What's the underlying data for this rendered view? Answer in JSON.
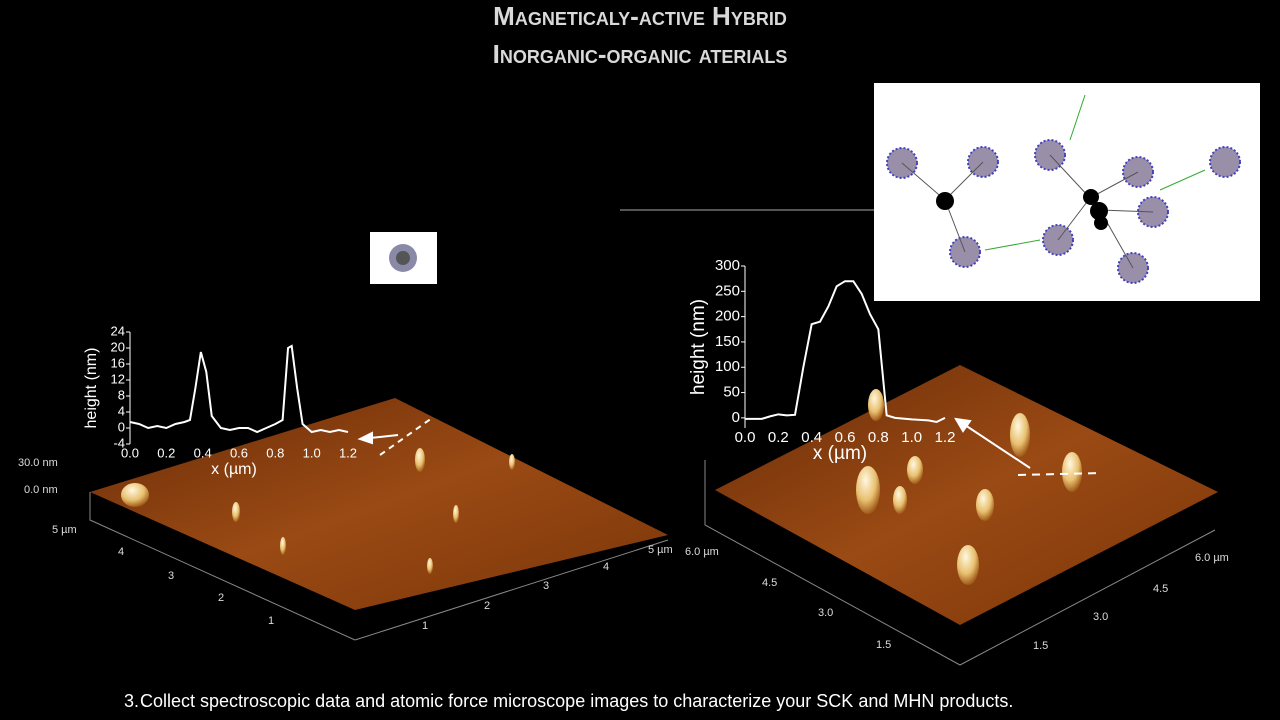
{
  "title": {
    "line1": "Magneticaly-active Hybrid",
    "line2": "Inorganic-organic aterials"
  },
  "profiles": [
    {
      "y_label": "height (nm)",
      "x_label": "x (µm)",
      "xlim": [
        0,
        1.2
      ],
      "ylim": [
        -4,
        24
      ],
      "xticks": [
        {
          "value": 0,
          "label": "0.0"
        },
        {
          "value": 0.2,
          "label": "0.2"
        },
        {
          "value": 0.4,
          "label": "0.4"
        },
        {
          "value": 0.6,
          "label": "0.6"
        },
        {
          "value": 0.8,
          "label": "0.8"
        },
        {
          "value": 1,
          "label": "1.0"
        },
        {
          "value": 1.2,
          "label": "1.2"
        }
      ],
      "yticks": [
        -4,
        0,
        4,
        8,
        12,
        16,
        20,
        24
      ],
      "x": [
        0,
        0.05,
        0.1,
        0.15,
        0.2,
        0.25,
        0.3,
        0.33,
        0.36,
        0.39,
        0.42,
        0.45,
        0.5,
        0.55,
        0.6,
        0.65,
        0.7,
        0.75,
        0.8,
        0.84,
        0.87,
        0.89,
        0.92,
        0.95,
        1,
        1.05,
        1.1,
        1.15,
        1.2
      ],
      "values": [
        1.5,
        1,
        0,
        0.5,
        0,
        1,
        1.5,
        2,
        10,
        19,
        14,
        3,
        0,
        -0.5,
        0,
        0,
        -1,
        0,
        1,
        2,
        20,
        20.5,
        10,
        1,
        -1,
        -0.5,
        -1,
        -0.5,
        -1
      ]
    },
    {
      "y_label": "height (nm)",
      "x_label": "x (µm)",
      "xlim": [
        0,
        1.2
      ],
      "ylim": [
        -20,
        300
      ],
      "xticks": [
        {
          "value": 0,
          "label": "0.0"
        },
        {
          "value": 0.2,
          "label": "0.2"
        },
        {
          "value": 0.4,
          "label": "0.4"
        },
        {
          "value": 0.6,
          "label": "0.6"
        },
        {
          "value": 0.8,
          "label": "0.8"
        },
        {
          "value": 1,
          "label": "1.0"
        },
        {
          "value": 1.2,
          "label": "1.2"
        }
      ],
      "yticks": [
        0,
        50,
        100,
        150,
        200,
        250,
        300
      ],
      "x": [
        0,
        0.1,
        0.15,
        0.2,
        0.25,
        0.3,
        0.35,
        0.4,
        0.45,
        0.5,
        0.55,
        0.6,
        0.65,
        0.7,
        0.75,
        0.8,
        0.85,
        0.9,
        1,
        1.1,
        1.15,
        1.2
      ],
      "values": [
        -2,
        -2,
        3,
        7,
        5,
        6,
        100,
        185,
        190,
        220,
        260,
        270,
        270,
        245,
        205,
        175,
        5,
        0,
        -3,
        -5,
        -8,
        0
      ]
    }
  ],
  "afm_images": [
    {
      "z_labels": [
        "30.0 nm",
        "0.0 nm"
      ],
      "y_axis_labels": [
        "5 µm",
        "4",
        "3",
        "2",
        "1"
      ],
      "x_axis_labels": [
        "1",
        "2",
        "3",
        "4",
        "5 µm"
      ]
    },
    {
      "y_axis_labels": [
        "6.0 µm",
        "4.5",
        "3.0",
        "1.5"
      ],
      "x_axis_labels": [
        "1.5",
        "3.0",
        "4.5",
        "6.0 µm"
      ]
    }
  ],
  "caption": {
    "number": "3.",
    "text": "Collect spectroscopic data and atomic force microscope images to characterize your SCK and MHN products."
  }
}
